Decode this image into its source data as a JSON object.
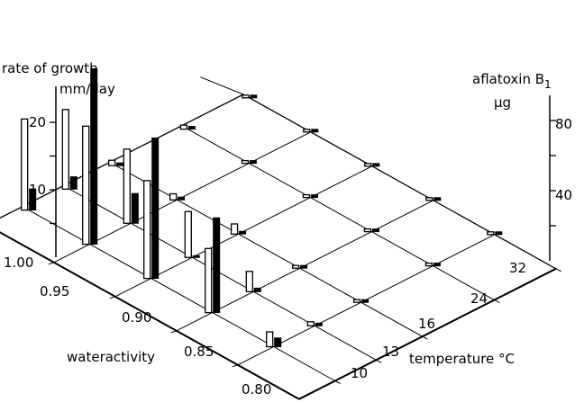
{
  "chart_data": {
    "type": "bar",
    "left_axis": {
      "title_line1": "rate of growth",
      "title_line2": "mm/day",
      "ticks": [
        "10",
        "20"
      ],
      "range": [
        0,
        25
      ]
    },
    "right_axis": {
      "title_line1": "aflatoxin B",
      "title_subscript": "1",
      "title_line2": "µg",
      "ticks": [
        "40",
        "80"
      ],
      "range": [
        0,
        100
      ]
    },
    "x_axis": {
      "label": "wateractivity",
      "ticks": [
        "1.00",
        "0.95",
        "0.90",
        "0.85",
        "0.80"
      ]
    },
    "z_axis": {
      "label": "temperature °C",
      "ticks": [
        "10",
        "13",
        "16",
        "24",
        "32"
      ]
    },
    "series": [
      {
        "name": "rate of growth",
        "style": "open",
        "color": "#ffffff"
      },
      {
        "name": "aflatoxin B1",
        "style": "filled",
        "color": "#000000"
      }
    ],
    "points": [
      {
        "wateractivity": 0.95,
        "temperature": 10,
        "growth": 2.2,
        "aflatoxin": 5
      },
      {
        "wateractivity": 0.95,
        "temperature": 13,
        "growth": 0.6,
        "aflatoxin": 0
      },
      {
        "wateractivity": 0.95,
        "temperature": 16,
        "growth": 0,
        "aflatoxin": 0
      },
      {
        "wateractivity": 0.95,
        "temperature": 24,
        "growth": 0,
        "aflatoxin": 0
      },
      {
        "wateractivity": 0.95,
        "temperature": 32,
        "growth": 0,
        "aflatoxin": 0
      },
      {
        "wateractivity": 0.9,
        "temperature": 10,
        "growth": 9.5,
        "aflatoxin": 54
      },
      {
        "wateractivity": 0.9,
        "temperature": 13,
        "growth": 3.0,
        "aflatoxin": 2
      },
      {
        "wateractivity": 0.9,
        "temperature": 16,
        "growth": 0.2,
        "aflatoxin": 0
      },
      {
        "wateractivity": 0.9,
        "temperature": 24,
        "growth": 0,
        "aflatoxin": 0
      },
      {
        "wateractivity": 0.9,
        "temperature": 32,
        "growth": 0,
        "aflatoxin": 0
      },
      {
        "wateractivity": 0.85,
        "temperature": 10,
        "growth": 14.5,
        "aflatoxin": 80
      },
      {
        "wateractivity": 0.85,
        "temperature": 13,
        "growth": 6.8,
        "aflatoxin": 1
      },
      {
        "wateractivity": 0.85,
        "temperature": 16,
        "growth": 1.5,
        "aflatoxin": 0
      },
      {
        "wateractivity": 0.85,
        "temperature": 24,
        "growth": 0.2,
        "aflatoxin": 0
      },
      {
        "wateractivity": 0.85,
        "temperature": 32,
        "growth": 0,
        "aflatoxin": 0
      },
      {
        "wateractivity": 0.8,
        "temperature": 10,
        "growth": 17.5,
        "aflatoxin": 100
      },
      {
        "wateractivity": 0.8,
        "temperature": 13,
        "growth": 11.0,
        "aflatoxin": 17
      },
      {
        "wateractivity": 0.8,
        "temperature": 16,
        "growth": 0.9,
        "aflatoxin": 0
      },
      {
        "wateractivity": 0.8,
        "temperature": 24,
        "growth": 0,
        "aflatoxin": 0
      },
      {
        "wateractivity": 0.8,
        "temperature": 32,
        "growth": 0,
        "aflatoxin": 0
      },
      {
        "wateractivity": 0.75,
        "temperature": 10,
        "growth": 13.5,
        "aflatoxin": 12
      },
      {
        "wateractivity": 0.75,
        "temperature": 13,
        "growth": 11.8,
        "aflatoxin": 7
      },
      {
        "wateractivity": 0.75,
        "temperature": 16,
        "growth": 0.8,
        "aflatoxin": 0
      },
      {
        "wateractivity": 0.75,
        "temperature": 24,
        "growth": 0.6,
        "aflatoxin": 0
      },
      {
        "wateractivity": 0.75,
        "temperature": 32,
        "growth": 0,
        "aflatoxin": 0
      }
    ]
  }
}
